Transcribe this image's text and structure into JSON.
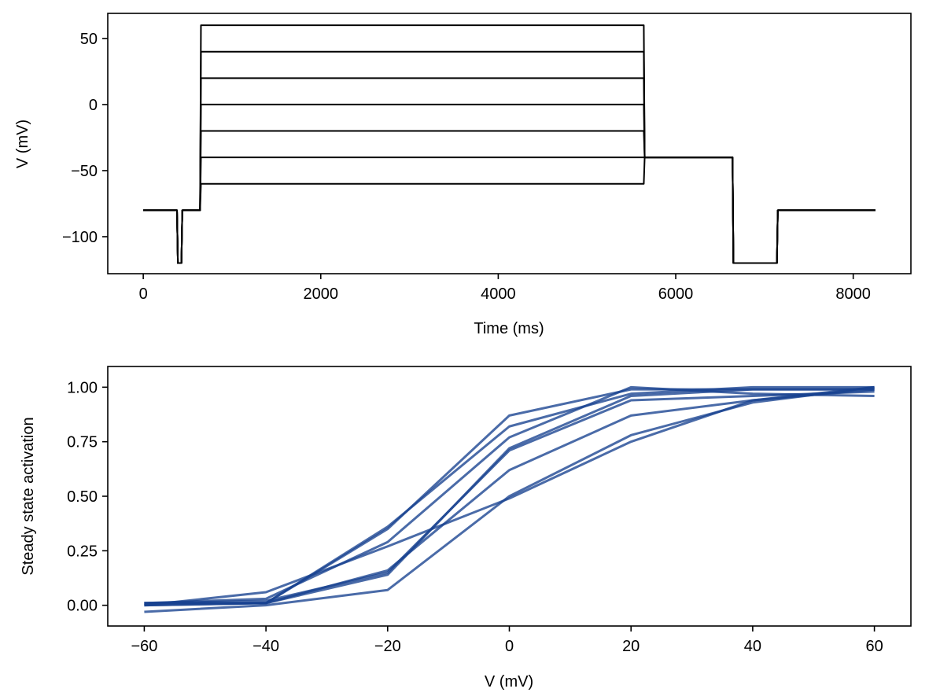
{
  "chart_data": [
    {
      "type": "line",
      "xlabel": "Time (ms)",
      "ylabel": "V (mV)",
      "xlim": [
        -400,
        8650
      ],
      "ylim": [
        -128,
        69
      ],
      "xticks": [
        0,
        2000,
        4000,
        6000,
        8000
      ],
      "yticks": [
        -100,
        -50,
        0,
        50
      ],
      "xtick_labels": [
        "0",
        "2000",
        "4000",
        "6000",
        "8000"
      ],
      "ytick_labels": [
        "−100",
        "−50",
        "0",
        "50"
      ],
      "line_color": "#000000",
      "x": [
        0,
        380,
        390,
        430,
        440,
        640,
        650,
        5640,
        5650,
        6640,
        6650,
        7140,
        7150,
        8250
      ],
      "series": [
        {
          "values": [
            -80,
            -80,
            -120,
            -120,
            -80,
            -80,
            60,
            60,
            -40,
            -40,
            -120,
            -120,
            -80,
            -80
          ]
        },
        {
          "values": [
            -80,
            -80,
            -120,
            -120,
            -80,
            -80,
            40,
            40,
            -40,
            -40,
            -120,
            -120,
            -80,
            -80
          ]
        },
        {
          "values": [
            -80,
            -80,
            -120,
            -120,
            -80,
            -80,
            20,
            20,
            -40,
            -40,
            -120,
            -120,
            -80,
            -80
          ]
        },
        {
          "values": [
            -80,
            -80,
            -120,
            -120,
            -80,
            -80,
            0,
            0,
            -40,
            -40,
            -120,
            -120,
            -80,
            -80
          ]
        },
        {
          "values": [
            -80,
            -80,
            -120,
            -120,
            -80,
            -80,
            -20,
            -20,
            -40,
            -40,
            -120,
            -120,
            -80,
            -80
          ]
        },
        {
          "values": [
            -80,
            -80,
            -120,
            -120,
            -80,
            -80,
            -40,
            -40,
            -40,
            -40,
            -120,
            -120,
            -80,
            -80
          ]
        },
        {
          "values": [
            -80,
            -80,
            -120,
            -120,
            -80,
            -80,
            -60,
            -60,
            -40,
            -40,
            -120,
            -120,
            -80,
            -80
          ]
        }
      ]
    },
    {
      "type": "line",
      "xlabel": "V (mV)",
      "ylabel": "Steady state activation",
      "xlim": [
        -66,
        66
      ],
      "ylim": [
        -0.095,
        1.095
      ],
      "xticks": [
        -60,
        -40,
        -20,
        0,
        20,
        40,
        60
      ],
      "yticks": [
        0,
        0.25,
        0.5,
        0.75,
        1.0
      ],
      "xtick_labels": [
        "−60",
        "−40",
        "−20",
        "0",
        "20",
        "40",
        "60"
      ],
      "ytick_labels": [
        "0.00",
        "0.25",
        "0.50",
        "0.75",
        "1.00"
      ],
      "line_color": "#17418f",
      "x": [
        -60,
        -40,
        -20,
        0,
        20,
        40,
        60
      ],
      "series": [
        {
          "values": [
            0.01,
            0.01,
            0.35,
            0.87,
            0.99,
            0.99,
            0.99
          ]
        },
        {
          "values": [
            0.0,
            0.01,
            0.36,
            0.82,
            0.97,
            1.0,
            1.0
          ]
        },
        {
          "values": [
            0.01,
            0.03,
            0.29,
            0.77,
            1.0,
            0.97,
            0.96
          ]
        },
        {
          "values": [
            0.0,
            0.01,
            0.14,
            0.72,
            0.96,
            0.99,
            0.99
          ]
        },
        {
          "values": [
            0.01,
            0.02,
            0.15,
            0.71,
            0.94,
            0.96,
            0.98
          ]
        },
        {
          "values": [
            0.01,
            0.01,
            0.16,
            0.62,
            0.87,
            0.94,
            1.0
          ]
        },
        {
          "values": [
            -0.03,
            0.0,
            0.07,
            0.5,
            0.78,
            0.93,
            1.0
          ]
        },
        {
          "values": [
            0.0,
            0.06,
            0.27,
            0.49,
            0.75,
            0.94,
            0.99
          ]
        }
      ]
    }
  ]
}
